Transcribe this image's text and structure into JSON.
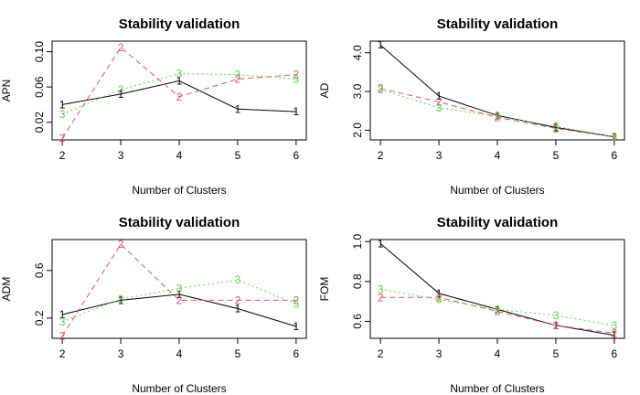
{
  "chart_data": [
    {
      "type": "line",
      "title": "Stability validation",
      "xlabel": "Number of Clusters",
      "ylabel": "APN",
      "x": [
        2,
        3,
        4,
        5,
        6
      ],
      "xticks": [
        "2",
        "3",
        "4",
        "5",
        "6"
      ],
      "ylim": [
        0.0,
        0.112
      ],
      "yticks": [
        {
          "value": 0.02,
          "label": "0.02"
        },
        {
          "value": 0.06,
          "label": "0.06"
        },
        {
          "value": 0.1,
          "label": "0.10"
        }
      ],
      "series": [
        {
          "marker": "1",
          "color": "#000000",
          "dash": "solid",
          "values": [
            0.04,
            0.052,
            0.067,
            0.035,
            0.032
          ]
        },
        {
          "marker": "2",
          "color": "#DF536B",
          "dash": "dashed",
          "values": [
            0.002,
            0.105,
            0.049,
            0.069,
            0.074
          ]
        },
        {
          "marker": "3",
          "color": "#61D04F",
          "dash": "dotted",
          "values": [
            0.029,
            0.057,
            0.075,
            0.074,
            0.069
          ]
        }
      ]
    },
    {
      "type": "line",
      "title": "Stability validation",
      "xlabel": "Number of Clusters",
      "ylabel": "AD",
      "x": [
        2,
        3,
        4,
        5,
        6
      ],
      "xticks": [
        "2",
        "3",
        "4",
        "5",
        "6"
      ],
      "ylim": [
        1.75,
        4.3
      ],
      "yticks": [
        {
          "value": 2.0,
          "label": "2.0"
        },
        {
          "value": 3.0,
          "label": "3.0"
        },
        {
          "value": 4.0,
          "label": "4.0"
        }
      ],
      "series": [
        {
          "marker": "1",
          "color": "#000000",
          "dash": "solid",
          "values": [
            4.2,
            2.88,
            2.38,
            2.07,
            1.83
          ]
        },
        {
          "marker": "2",
          "color": "#DF536B",
          "dash": "dashed",
          "values": [
            3.08,
            2.73,
            2.33,
            2.05,
            1.82
          ]
        },
        {
          "marker": "3",
          "color": "#61D04F",
          "dash": "dotted",
          "values": [
            3.05,
            2.58,
            2.36,
            2.1,
            1.83
          ]
        }
      ]
    },
    {
      "type": "line",
      "title": "Stability validation",
      "xlabel": "Number of Clusters",
      "ylabel": "ADM",
      "x": [
        2,
        3,
        4,
        5,
        6
      ],
      "xticks": [
        "2",
        "3",
        "4",
        "5",
        "6"
      ],
      "ylim": [
        0.03,
        0.86
      ],
      "yticks": [
        {
          "value": 0.2,
          "label": "0.2"
        },
        {
          "value": 0.6,
          "label": "0.6"
        }
      ],
      "series": [
        {
          "marker": "1",
          "color": "#000000",
          "dash": "solid",
          "values": [
            0.23,
            0.35,
            0.4,
            0.28,
            0.13
          ]
        },
        {
          "marker": "2",
          "color": "#DF536B",
          "dash": "dashed",
          "values": [
            0.05,
            0.82,
            0.35,
            0.35,
            0.35
          ]
        },
        {
          "marker": "3",
          "color": "#61D04F",
          "dash": "dotted",
          "values": [
            0.17,
            0.36,
            0.45,
            0.52,
            0.32
          ]
        }
      ]
    },
    {
      "type": "line",
      "title": "Stability validation",
      "xlabel": "Number of Clusters",
      "ylabel": "FOM",
      "x": [
        2,
        3,
        4,
        5,
        6
      ],
      "xticks": [
        "2",
        "3",
        "4",
        "5",
        "6"
      ],
      "ylim": [
        0.515,
        1.01
      ],
      "yticks": [
        {
          "value": 0.6,
          "label": "0.6"
        },
        {
          "value": 0.8,
          "label": "0.8"
        },
        {
          "value": 1.0,
          "label": "1.0"
        }
      ],
      "series": [
        {
          "marker": "1",
          "color": "#000000",
          "dash": "solid",
          "values": [
            0.99,
            0.74,
            0.66,
            0.58,
            0.53
          ]
        },
        {
          "marker": "2",
          "color": "#DF536B",
          "dash": "dashed",
          "values": [
            0.72,
            0.72,
            0.65,
            0.58,
            0.54
          ]
        },
        {
          "marker": "3",
          "color": "#61D04F",
          "dash": "dotted",
          "values": [
            0.76,
            0.71,
            0.66,
            0.63,
            0.58
          ]
        }
      ]
    }
  ]
}
